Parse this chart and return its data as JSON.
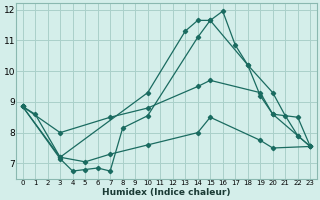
{
  "xlabel": "Humidex (Indice chaleur)",
  "bg_color": "#d4eeea",
  "grid_color": "#aad0ca",
  "line_color": "#1a6b60",
  "xlim": [
    -0.5,
    23.5
  ],
  "ylim": [
    6.5,
    12.2
  ],
  "yticks": [
    7,
    8,
    9,
    10,
    11,
    12
  ],
  "xticks": [
    0,
    1,
    2,
    3,
    4,
    5,
    6,
    7,
    8,
    9,
    10,
    11,
    12,
    13,
    14,
    15,
    16,
    17,
    18,
    19,
    20,
    21,
    22,
    23
  ],
  "line1_x": [
    0,
    1,
    3,
    10,
    13,
    14,
    15,
    16,
    17,
    18,
    20,
    21,
    22,
    23
  ],
  "line1_y": [
    8.85,
    8.6,
    7.2,
    9.3,
    11.3,
    11.65,
    11.65,
    11.95,
    10.85,
    10.2,
    9.3,
    8.55,
    7.9,
    7.55
  ],
  "line2_x": [
    0,
    3,
    4,
    5,
    6,
    7,
    8,
    10,
    14,
    15,
    18,
    19,
    20,
    22,
    23
  ],
  "line2_y": [
    8.85,
    7.15,
    6.75,
    6.8,
    6.85,
    6.75,
    8.15,
    8.55,
    11.1,
    11.65,
    10.2,
    9.2,
    8.6,
    7.9,
    7.55
  ],
  "line3_x": [
    0,
    3,
    7,
    10,
    14,
    15,
    19,
    20,
    22,
    23
  ],
  "line3_y": [
    8.85,
    8.0,
    8.5,
    8.8,
    9.5,
    9.7,
    9.3,
    8.6,
    8.5,
    7.55
  ],
  "line4_x": [
    0,
    3,
    5,
    7,
    10,
    14,
    15,
    19,
    20,
    23
  ],
  "line4_y": [
    8.85,
    7.2,
    7.05,
    7.3,
    7.6,
    8.0,
    8.5,
    7.75,
    7.5,
    7.55
  ]
}
